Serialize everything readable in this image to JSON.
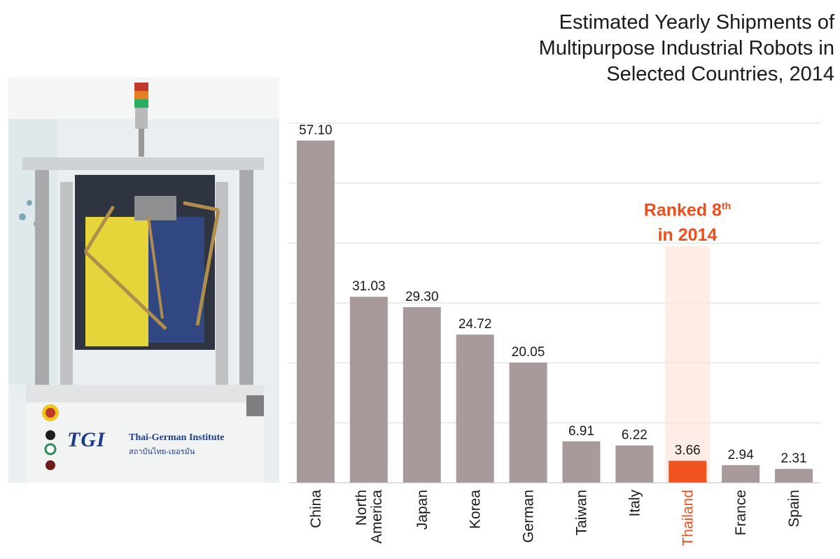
{
  "title_lines": [
    "Estimated Yearly Shipments of",
    "Multipurpose Industrial Robots in",
    "Selected Countries, 2014"
  ],
  "annotation": {
    "line1": "Ranked 8",
    "line1_sup": "th",
    "line2": "in 2014",
    "color": "#ee4e1c"
  },
  "photo": {
    "brand_logo": "TGI",
    "brand_name": "Thai-German Institute",
    "brand_sub": "สถาบันไทย-เยอรมัน"
  },
  "colors": {
    "bar": "#a89a9b",
    "highlight_bar": "#f2531e",
    "highlight_label": "#ee4e1c",
    "highlight_band": "#fde4dc",
    "grid": "#d9d9d9"
  },
  "chart_data": {
    "type": "bar",
    "title": "Estimated Yearly Shipments of Multipurpose Industrial Robots in Selected Countries, 2014",
    "xlabel": "",
    "ylabel": "",
    "ylim": [
      0,
      60
    ],
    "grid": true,
    "categories": [
      "China",
      [
        "North",
        "America"
      ],
      "Japan",
      "Korea",
      "German",
      "Taiwan",
      "Italy",
      "Thailand",
      "France",
      "Spain"
    ],
    "values": [
      57.1,
      31.03,
      29.3,
      24.72,
      20.05,
      6.91,
      6.22,
      3.66,
      2.94,
      2.31
    ],
    "value_labels": [
      "57.10",
      "31.03",
      "29.30",
      "24.72",
      "20.05",
      "6.91",
      "6.22",
      "3.66",
      "2.94",
      "2.31"
    ],
    "highlight": "Thailand"
  }
}
